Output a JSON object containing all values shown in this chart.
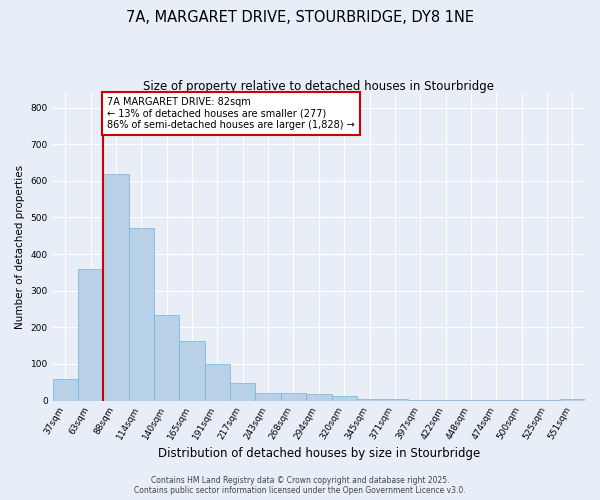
{
  "title_line1": "7A, MARGARET DRIVE, STOURBRIDGE, DY8 1NE",
  "title_line2": "Size of property relative to detached houses in Stourbridge",
  "xlabel": "Distribution of detached houses by size in Stourbridge",
  "ylabel": "Number of detached properties",
  "categories": [
    "37sqm",
    "63sqm",
    "88sqm",
    "114sqm",
    "140sqm",
    "165sqm",
    "191sqm",
    "217sqm",
    "243sqm",
    "268sqm",
    "294sqm",
    "320sqm",
    "345sqm",
    "371sqm",
    "397sqm",
    "422sqm",
    "448sqm",
    "474sqm",
    "500sqm",
    "525sqm",
    "551sqm"
  ],
  "values": [
    60,
    360,
    620,
    470,
    235,
    162,
    100,
    48,
    22,
    20,
    18,
    13,
    5,
    3,
    2,
    2,
    1,
    1,
    1,
    1,
    5
  ],
  "bar_color": "#b8d0e8",
  "bar_edge_color": "#7aafd4",
  "red_line_index": 2,
  "red_line_color": "#cc0000",
  "annotation_text": "7A MARGARET DRIVE: 82sqm\n← 13% of detached houses are smaller (277)\n86% of semi-detached houses are larger (1,828) →",
  "annotation_box_color": "#ffffff",
  "annotation_box_edge_color": "#cc0000",
  "annotation_fontsize": 7.0,
  "ylim": [
    0,
    840
  ],
  "yticks": [
    0,
    100,
    200,
    300,
    400,
    500,
    600,
    700,
    800
  ],
  "background_color": "#e8eef8",
  "grid_color": "#ffffff",
  "footer_text": "Contains HM Land Registry data © Crown copyright and database right 2025.\nContains public sector information licensed under the Open Government Licence v3.0.",
  "title_fontsize": 10.5,
  "subtitle_fontsize": 8.5,
  "xlabel_fontsize": 8.5,
  "ylabel_fontsize": 7.5,
  "tick_fontsize": 6.5,
  "footer_fontsize": 5.5
}
